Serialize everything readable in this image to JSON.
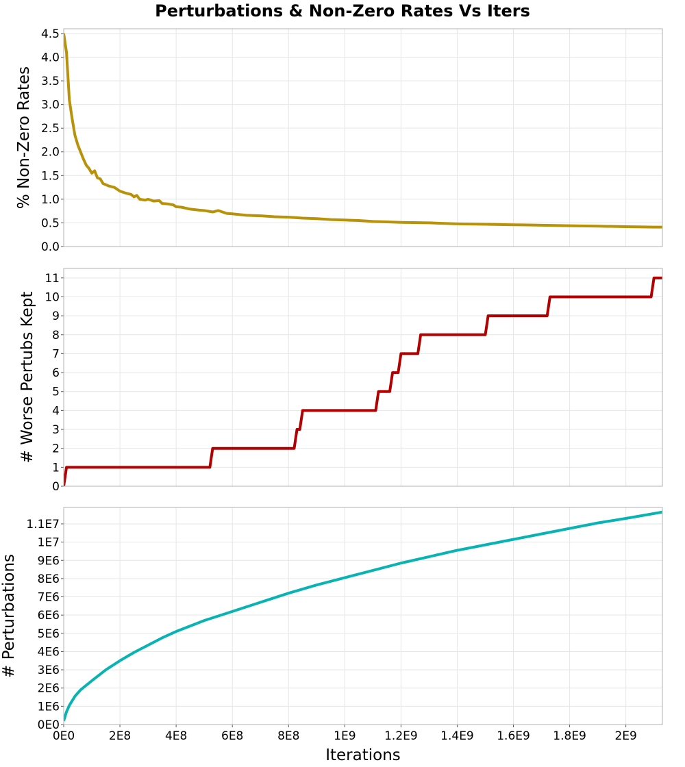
{
  "title": "Perturbations & Non-Zero Rates Vs Iters",
  "xlabel": "Iterations",
  "chart_data": [
    {
      "type": "line",
      "ylabel": "% Non-Zero Rates",
      "color": "#b8930a",
      "xlim": [
        0,
        2130000000
      ],
      "ylim": [
        0,
        4.6
      ],
      "yticks": [
        0.0,
        0.5,
        1.0,
        1.5,
        2.0,
        2.5,
        3.0,
        3.5,
        4.0,
        4.5
      ],
      "yticklabels": [
        "0.0",
        "0.5",
        "1.0",
        "1.5",
        "2.0",
        "2.5",
        "3.0",
        "3.5",
        "4.0",
        "4.5"
      ],
      "series": [
        {
          "x": [
            0,
            10000000,
            20000000,
            30000000,
            40000000,
            50000000,
            60000000,
            70000000,
            80000000,
            90000000,
            100000000,
            110000000,
            120000000,
            130000000,
            140000000,
            160000000,
            180000000,
            200000000,
            220000000,
            240000000,
            250000000,
            260000000,
            270000000,
            290000000,
            300000000,
            320000000,
            340000000,
            350000000,
            370000000,
            390000000,
            400000000,
            420000000,
            450000000,
            480000000,
            500000000,
            530000000,
            550000000,
            580000000,
            600000000,
            650000000,
            700000000,
            750000000,
            800000000,
            850000000,
            900000000,
            950000000,
            1000000000,
            1050000000,
            1100000000,
            1150000000,
            1200000000,
            1300000000,
            1400000000,
            1500000000,
            1600000000,
            1700000000,
            1800000000,
            1900000000,
            2000000000,
            2100000000,
            2130000000
          ],
          "y": [
            4.5,
            4.1,
            3.1,
            2.7,
            2.35,
            2.15,
            2.0,
            1.85,
            1.72,
            1.65,
            1.55,
            1.6,
            1.45,
            1.43,
            1.33,
            1.28,
            1.25,
            1.17,
            1.13,
            1.1,
            1.05,
            1.08,
            1.0,
            0.98,
            1.0,
            0.96,
            0.97,
            0.91,
            0.9,
            0.88,
            0.84,
            0.83,
            0.79,
            0.77,
            0.76,
            0.73,
            0.76,
            0.7,
            0.69,
            0.66,
            0.65,
            0.63,
            0.62,
            0.6,
            0.59,
            0.57,
            0.56,
            0.55,
            0.53,
            0.52,
            0.51,
            0.5,
            0.48,
            0.47,
            0.46,
            0.45,
            0.44,
            0.43,
            0.42,
            0.41,
            0.41
          ]
        }
      ]
    },
    {
      "type": "line",
      "ylabel": "# Worse Pertubs Kept",
      "color": "#b30000",
      "xlim": [
        0,
        2130000000
      ],
      "ylim": [
        0,
        11.5
      ],
      "yticks": [
        0,
        1,
        2,
        3,
        4,
        5,
        6,
        7,
        8,
        9,
        10,
        11
      ],
      "yticklabels": [
        "0",
        "1",
        "2",
        "3",
        "4",
        "5",
        "6",
        "7",
        "8",
        "9",
        "10",
        "11"
      ],
      "series": [
        {
          "x": [
            0,
            10000000,
            520000000,
            530000000,
            820000000,
            830000000,
            840000000,
            850000000,
            1110000000,
            1120000000,
            1160000000,
            1170000000,
            1190000000,
            1200000000,
            1230000000,
            1240000000,
            1260000000,
            1270000000,
            1500000000,
            1510000000,
            1720000000,
            1730000000,
            2090000000,
            2100000000,
            2130000000
          ],
          "y": [
            0,
            1,
            1,
            2,
            2,
            3,
            3,
            4,
            4,
            5,
            5,
            6,
            6,
            7,
            7,
            7,
            7,
            8,
            8,
            9,
            9,
            10,
            10,
            11,
            11
          ]
        }
      ]
    },
    {
      "type": "line",
      "ylabel": "# Perturbations",
      "color": "#0ab3b3",
      "xlim": [
        0,
        2130000000
      ],
      "ylim": [
        0,
        11900000
      ],
      "yticks": [
        0,
        1000000,
        2000000,
        3000000,
        4000000,
        5000000,
        6000000,
        7000000,
        8000000,
        9000000,
        10000000,
        11000000
      ],
      "yticklabels": [
        "0E0",
        "1E6",
        "2E6",
        "3E6",
        "4E6",
        "5E6",
        "6E6",
        "7E6",
        "8E6",
        "9E6",
        "1E7",
        "1.1E7"
      ],
      "xticks": [
        0,
        200000000,
        400000000,
        600000000,
        800000000,
        1000000000,
        1200000000,
        1400000000,
        1600000000,
        1800000000,
        2000000000
      ],
      "xticklabels": [
        "0E0",
        "2E8",
        "4E8",
        "6E8",
        "8E8",
        "1E9",
        "1.2E9",
        "1.4E9",
        "1.6E9",
        "1.8E9",
        "2E9"
      ],
      "series": [
        {
          "x": [
            0,
            10000000,
            20000000,
            40000000,
            60000000,
            80000000,
            100000000,
            150000000,
            200000000,
            250000000,
            300000000,
            350000000,
            400000000,
            500000000,
            600000000,
            700000000,
            800000000,
            900000000,
            1000000000,
            1100000000,
            1200000000,
            1300000000,
            1400000000,
            1500000000,
            1600000000,
            1700000000,
            1800000000,
            1900000000,
            2000000000,
            2130000000
          ],
          "y": [
            200000,
            700000,
            1050000,
            1550000,
            1900000,
            2150000,
            2400000,
            3000000,
            3500000,
            3950000,
            4350000,
            4750000,
            5100000,
            5700000,
            6200000,
            6700000,
            7200000,
            7650000,
            8050000,
            8450000,
            8850000,
            9200000,
            9550000,
            9850000,
            10150000,
            10450000,
            10750000,
            11050000,
            11300000,
            11650000
          ]
        }
      ]
    }
  ]
}
